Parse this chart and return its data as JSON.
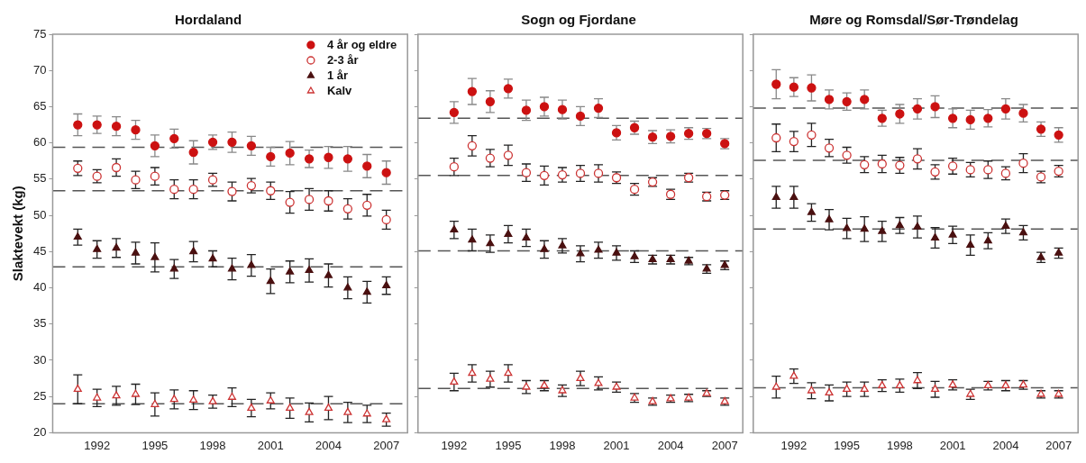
{
  "chart_data": [
    {
      "type": "scatter",
      "title": "Hordaland",
      "ylabel": "Slaktevekt (kg)",
      "x": [
        1991,
        1992,
        1993,
        1994,
        1995,
        1996,
        1997,
        1998,
        1999,
        2000,
        2001,
        2002,
        2003,
        2004,
        2005,
        2006,
        2007
      ],
      "xlim": [
        1989.7,
        2008.1
      ],
      "xticks": [
        1992,
        1995,
        1998,
        2001,
        2004,
        2007
      ],
      "ylim": [
        20,
        75
      ],
      "yticks": [
        20,
        25,
        30,
        35,
        40,
        45,
        50,
        55,
        60,
        65,
        70,
        75
      ],
      "grid": false,
      "legend": "top right",
      "series": [
        {
          "name": "4 år og eldre",
          "color": "#cc1111",
          "marker": "circle",
          "values": [
            62.5,
            62.5,
            62.3,
            61.8,
            59.6,
            60.6,
            58.7,
            60.1,
            60.1,
            59.6,
            58.1,
            58.6,
            57.8,
            58.0,
            57.8,
            56.8,
            55.9
          ],
          "errors": [
            1.5,
            1.2,
            1.3,
            1.3,
            1.5,
            1.3,
            1.6,
            1.0,
            1.4,
            1.3,
            1.3,
            1.6,
            1.2,
            1.5,
            1.7,
            1.6,
            1.6
          ]
        },
        {
          "name": "2-3 år",
          "color": "#cc3333",
          "marker": "circle",
          "values": [
            56.5,
            55.4,
            56.6,
            54.9,
            55.4,
            53.6,
            53.6,
            54.9,
            53.3,
            54.1,
            53.4,
            51.8,
            52.2,
            52.0,
            50.9,
            51.4,
            49.4
          ],
          "errors": [
            1.0,
            0.9,
            1.2,
            1.2,
            1.2,
            1.3,
            1.3,
            0.9,
            1.3,
            1.0,
            1.2,
            1.5,
            1.5,
            1.4,
            1.4,
            1.5,
            1.3
          ]
        },
        {
          "name": "1 år",
          "color": "#4a1010",
          "marker": "triangle",
          "values": [
            47.0,
            45.3,
            45.5,
            44.8,
            44.2,
            42.6,
            45.0,
            44.0,
            42.6,
            43.1,
            40.9,
            42.2,
            42.4,
            41.7,
            40.0,
            39.4,
            40.3
          ],
          "errors": [
            1.1,
            1.2,
            1.3,
            1.5,
            2.0,
            1.3,
            1.4,
            1.1,
            1.5,
            1.5,
            1.7,
            1.5,
            1.6,
            1.6,
            1.5,
            1.5,
            1.2
          ]
        },
        {
          "name": "Kalv",
          "color": "#cc3333",
          "marker": "triangle",
          "values": [
            26.0,
            24.8,
            25.1,
            25.3,
            23.9,
            24.6,
            24.5,
            24.3,
            24.9,
            23.4,
            24.4,
            23.4,
            22.8,
            23.4,
            22.8,
            22.6,
            21.8
          ],
          "errors": [
            2.0,
            1.2,
            1.3,
            1.4,
            1.6,
            1.3,
            1.3,
            0.9,
            1.3,
            1.2,
            1.1,
            1.4,
            1.3,
            1.6,
            1.4,
            1.2,
            0.9
          ]
        }
      ],
      "ref_lines": [
        {
          "axis": "y",
          "value": 59.4,
          "color": "#555555",
          "line_style": "dashed"
        },
        {
          "axis": "y",
          "value": 53.4,
          "color": "#555555",
          "line_style": "dashed"
        },
        {
          "axis": "y",
          "value": 42.9,
          "color": "#555555",
          "line_style": "dashed"
        },
        {
          "axis": "y",
          "value": 24.0,
          "color": "#555555",
          "line_style": "dashed"
        }
      ]
    },
    {
      "type": "scatter",
      "title": "Sogn og Fjordane",
      "x": [
        1992,
        1993,
        1994,
        1995,
        1996,
        1997,
        1998,
        1999,
        2000,
        2001,
        2002,
        2003,
        2004,
        2005,
        2006,
        2007
      ],
      "xlim": [
        1990.0,
        2008.0
      ],
      "xticks": [
        1992,
        1995,
        1998,
        2001,
        2004,
        2007
      ],
      "ylim": [
        20,
        75
      ],
      "yticks": [
        20,
        25,
        30,
        35,
        40,
        45,
        50,
        55,
        60,
        65,
        70,
        75
      ],
      "grid": false,
      "tick_labels": "x",
      "series": [
        {
          "color": "#cc1111",
          "marker": "circle",
          "values": [
            64.2,
            67.1,
            65.7,
            67.5,
            64.5,
            65.0,
            64.6,
            63.7,
            64.8,
            61.4,
            62.1,
            60.8,
            60.9,
            61.3,
            61.3,
            59.9
          ],
          "errors": [
            1.5,
            1.8,
            1.5,
            1.3,
            1.4,
            1.3,
            1.3,
            1.3,
            1.3,
            1.0,
            0.9,
            0.9,
            0.9,
            0.8,
            0.7,
            0.7
          ]
        },
        {
          "color": "#cc3333",
          "marker": "circle",
          "values": [
            56.7,
            59.6,
            57.9,
            58.3,
            55.9,
            55.5,
            55.6,
            55.8,
            55.8,
            55.2,
            53.6,
            54.6,
            52.9,
            55.2,
            52.6,
            52.8
          ],
          "errors": [
            1.2,
            1.4,
            1.2,
            1.4,
            1.2,
            1.3,
            1.0,
            1.1,
            1.2,
            0.8,
            0.8,
            0.6,
            0.7,
            0.6,
            0.6,
            0.6
          ]
        },
        {
          "color": "#4a1010",
          "marker": "triangle",
          "values": [
            48.0,
            46.6,
            46.1,
            47.4,
            46.9,
            45.3,
            45.8,
            44.7,
            45.2,
            44.8,
            44.3,
            43.9,
            43.9,
            43.7,
            42.6,
            43.1
          ],
          "errors": [
            1.2,
            1.5,
            1.2,
            1.2,
            1.2,
            1.2,
            1.0,
            1.1,
            1.1,
            1.0,
            0.8,
            0.6,
            0.6,
            0.5,
            0.6,
            0.6
          ]
        },
        {
          "color": "#cc3333",
          "marker": "triangle",
          "values": [
            27.0,
            28.2,
            27.4,
            28.2,
            26.3,
            26.5,
            25.8,
            27.5,
            26.8,
            26.3,
            24.8,
            24.3,
            24.7,
            24.8,
            25.4,
            24.3
          ],
          "errors": [
            1.2,
            1.2,
            1.1,
            1.2,
            0.9,
            0.7,
            0.8,
            1.0,
            0.9,
            0.7,
            0.6,
            0.5,
            0.5,
            0.5,
            0.4,
            0.5
          ]
        }
      ],
      "ref_lines": [
        {
          "axis": "y",
          "value": 63.4,
          "color": "#555555",
          "line_style": "dashed"
        },
        {
          "axis": "y",
          "value": 55.5,
          "color": "#555555",
          "line_style": "dashed"
        },
        {
          "axis": "y",
          "value": 45.1,
          "color": "#555555",
          "line_style": "dashed"
        },
        {
          "axis": "y",
          "value": 26.1,
          "color": "#555555",
          "line_style": "dashed"
        }
      ]
    },
    {
      "type": "scatter",
      "title": "Møre og Romsdal/Sør-Trøndelag",
      "x": [
        1991,
        1992,
        1993,
        1994,
        1995,
        1996,
        1997,
        1998,
        1999,
        2000,
        2001,
        2002,
        2003,
        2004,
        2005,
        2006,
        2007
      ],
      "xlim": [
        1989.7,
        2008.1
      ],
      "xticks": [
        1992,
        1995,
        1998,
        2001,
        2004,
        2007
      ],
      "ylim": [
        20,
        75
      ],
      "yticks": [
        20,
        25,
        30,
        35,
        40,
        45,
        50,
        55,
        60,
        65,
        70,
        75
      ],
      "grid": false,
      "tick_labels": "x",
      "series": [
        {
          "color": "#cc1111",
          "marker": "circle",
          "values": [
            68.1,
            67.7,
            67.6,
            66.0,
            65.7,
            66.0,
            63.4,
            64.0,
            64.7,
            65.0,
            63.4,
            63.2,
            63.4,
            64.7,
            64.1,
            61.9,
            61.1
          ],
          "errors": [
            2.0,
            1.3,
            1.8,
            1.3,
            1.2,
            1.3,
            1.1,
            1.3,
            1.4,
            1.5,
            1.3,
            1.3,
            1.2,
            1.4,
            1.2,
            1.0,
            1.0
          ]
        },
        {
          "color": "#cc3333",
          "marker": "circle",
          "values": [
            60.7,
            60.2,
            61.1,
            59.3,
            58.3,
            57.0,
            57.1,
            56.9,
            57.8,
            56.0,
            56.8,
            56.3,
            56.3,
            55.8,
            57.2,
            55.3,
            56.1
          ],
          "errors": [
            1.9,
            1.4,
            1.6,
            1.2,
            1.1,
            1.1,
            1.2,
            1.1,
            1.4,
            1.0,
            1.1,
            1.0,
            1.2,
            0.9,
            1.3,
            0.8,
            0.8
          ]
        },
        {
          "color": "#4a1010",
          "marker": "triangle",
          "values": [
            52.5,
            52.5,
            50.4,
            49.4,
            48.2,
            48.1,
            47.8,
            48.6,
            48.4,
            46.9,
            47.3,
            45.9,
            46.5,
            48.5,
            47.6,
            44.2,
            44.8
          ],
          "errors": [
            1.5,
            1.5,
            1.2,
            1.4,
            1.4,
            1.7,
            1.4,
            1.1,
            1.5,
            1.4,
            1.2,
            1.4,
            1.1,
            1.0,
            1.0,
            0.7,
            0.7
          ]
        },
        {
          "color": "#cc3333",
          "marker": "triangle",
          "values": [
            26.3,
            27.8,
            25.8,
            25.5,
            26.0,
            26.0,
            26.5,
            26.5,
            27.2,
            26.0,
            26.6,
            25.3,
            26.5,
            26.5,
            26.6,
            25.3,
            25.3
          ],
          "errors": [
            1.5,
            1.0,
            1.1,
            1.1,
            1.0,
            1.0,
            0.8,
            0.9,
            1.1,
            1.1,
            0.7,
            0.7,
            0.6,
            0.7,
            0.6,
            0.5,
            0.5
          ]
        }
      ],
      "ref_lines": [
        {
          "axis": "y",
          "value": 64.8,
          "color": "#555555",
          "line_style": "dashed"
        },
        {
          "axis": "y",
          "value": 57.6,
          "color": "#555555",
          "line_style": "dashed"
        },
        {
          "axis": "y",
          "value": 48.1,
          "color": "#555555",
          "line_style": "dashed"
        },
        {
          "axis": "y",
          "value": 26.2,
          "color": "#555555",
          "line_style": "dashed"
        }
      ]
    }
  ]
}
